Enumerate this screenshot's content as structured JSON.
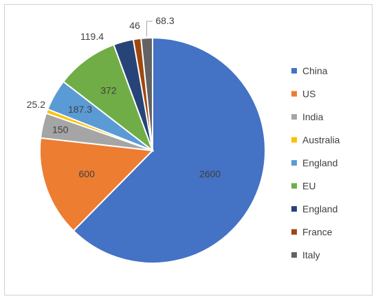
{
  "chart_data": {
    "type": "pie",
    "title": "",
    "categories": [
      "China",
      "US",
      "India",
      "Australia",
      "England",
      "EU",
      "England",
      "France",
      "Italy"
    ],
    "values": [
      2600,
      600,
      150,
      25.2,
      187.3,
      372,
      119.4,
      46,
      68.3
    ],
    "value_labels": [
      "2600",
      "600",
      "150",
      "25.2",
      "187.3",
      "372",
      "119.4",
      "46",
      "68.3"
    ],
    "colors": [
      "#4472C4",
      "#ED7D31",
      "#A5A5A5",
      "#FFC000",
      "#5B9BD5",
      "#70AD47",
      "#264478",
      "#9E480E",
      "#636363"
    ],
    "legend_position": "right",
    "start_angle_deg": 90,
    "direction": "clockwise"
  }
}
